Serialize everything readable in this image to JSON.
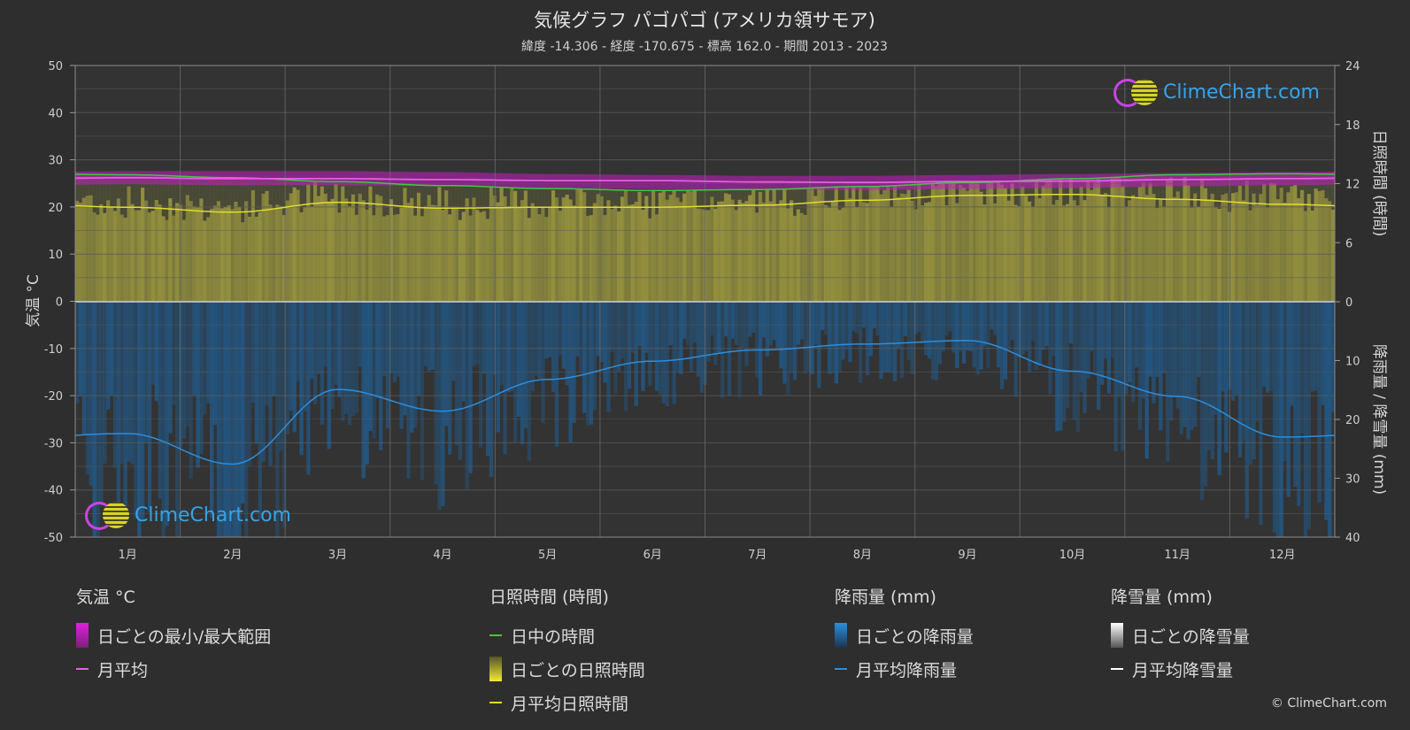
{
  "chart_data": {
    "type": "line",
    "title": "気候グラフ パゴパゴ (アメリカ領サモア)",
    "subtitle": "緯度 -14.306 - 経度 -170.675 - 標高 162.0 - 期間 2013 - 2023",
    "categories": [
      "1月",
      "2月",
      "3月",
      "4月",
      "5月",
      "6月",
      "7月",
      "8月",
      "9月",
      "10月",
      "11月",
      "12月"
    ],
    "ylabel_left": "気温 °C",
    "ylabel_right_top": "日照時間 (時間)",
    "ylabel_right_bottom": "降雨量 / 降雪量 (mm)",
    "left_ticks": [
      "50",
      "40",
      "30",
      "20",
      "10",
      "0",
      "-10",
      "-20",
      "-30",
      "-40",
      "-50"
    ],
    "right_top_ticks": [
      "24",
      "18",
      "12",
      "6",
      "0"
    ],
    "right_bottom_ticks": [
      "10",
      "20",
      "30",
      "40"
    ],
    "ylim_temp": [
      -50,
      50
    ],
    "ylim_sun": [
      0,
      24
    ],
    "ylim_rain": [
      0,
      40
    ],
    "series": [
      {
        "name": "月平均",
        "unit": "°C",
        "color": "#e85ce8",
        "values": [
          26.2,
          26.0,
          26.0,
          25.8,
          25.6,
          25.6,
          25.3,
          25.2,
          25.4,
          25.5,
          25.8,
          26.0
        ]
      },
      {
        "name": "日中の時間",
        "unit": "時間",
        "color": "#3ec93e",
        "values": [
          12.9,
          12.6,
          12.2,
          11.8,
          11.5,
          11.3,
          11.4,
          11.7,
          12.1,
          12.5,
          12.9,
          13.0
        ]
      },
      {
        "name": "月平均日照時間",
        "unit": "時間",
        "color": "#e2dc2a",
        "values": [
          9.6,
          9.1,
          10.1,
          9.5,
          9.6,
          9.6,
          9.8,
          10.3,
          10.8,
          10.9,
          10.4,
          9.9
        ]
      },
      {
        "name": "月平均降雨量",
        "unit": "mm",
        "color": "#2a8fe0",
        "values": [
          22.4,
          27.6,
          14.9,
          18.6,
          13.2,
          10.1,
          8.2,
          7.2,
          6.6,
          11.8,
          16.1,
          23.0
        ]
      }
    ],
    "temp_range_band": {
      "min": [
        24.8,
        24.6,
        24.6,
        24.4,
        24.0,
        23.8,
        23.6,
        23.6,
        23.8,
        24.0,
        24.4,
        24.6
      ],
      "max": [
        27.6,
        27.6,
        27.6,
        27.4,
        27.0,
        26.8,
        26.6,
        26.6,
        26.8,
        27.0,
        27.2,
        27.4
      ]
    },
    "grid": true
  },
  "legend": {
    "temp": {
      "header": "気温 °C",
      "range": "日ごとの最小/最大範囲",
      "mean": "月平均",
      "range_color": "#e020e0",
      "mean_color": "#e85ce8"
    },
    "sun": {
      "header": "日照時間 (時間)",
      "daylight": "日中の時間",
      "daily": "日ごとの日照時間",
      "mean": "月平均日照時間",
      "daylight_color": "#3ec93e",
      "mean_color": "#e2dc2a"
    },
    "rain": {
      "header": "降雨量 (mm)",
      "daily": "日ごとの降雨量",
      "mean": "月平均降雨量",
      "color": "#2a8fe0"
    },
    "snow": {
      "header": "降雪量 (mm)",
      "daily": "日ごとの降雪量",
      "mean": "月平均降雪量",
      "color": "#ffffff"
    }
  },
  "brand": {
    "name": "ClimeChart.com",
    "copyright": "© ClimeChart.com"
  }
}
